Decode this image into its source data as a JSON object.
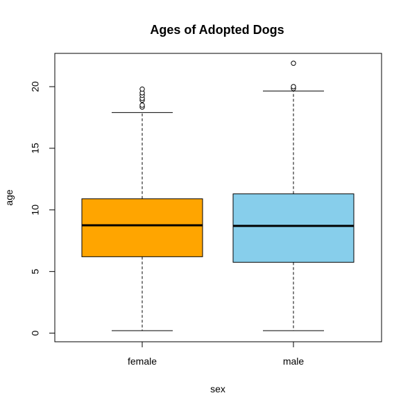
{
  "chart_data": {
    "type": "boxplot",
    "title": "Ages of Adopted Dogs",
    "xlabel": "sex",
    "ylabel": "age",
    "ylim": [
      -0.7,
      22.7
    ],
    "y_ticks": [
      0,
      5,
      10,
      15,
      20
    ],
    "y_tick_labels": [
      "0",
      "5",
      "10",
      "15",
      "20"
    ],
    "categories": [
      "female",
      "male"
    ],
    "boxes": [
      {
        "category": "female",
        "color": "#FFA500",
        "whisker_low": 0.2,
        "q1": 6.2,
        "median": 8.75,
        "q3": 10.9,
        "whisker_high": 17.9,
        "outliers": [
          18.35,
          18.5,
          18.9,
          19.05,
          19.3,
          19.5,
          19.8
        ]
      },
      {
        "category": "male",
        "color": "#87CEEB",
        "whisker_low": 0.2,
        "q1": 5.75,
        "median": 8.7,
        "q3": 11.3,
        "whisker_high": 19.65,
        "outliers": [
          19.85,
          20.0,
          21.9
        ]
      }
    ],
    "grid": false,
    "legend": "none"
  }
}
